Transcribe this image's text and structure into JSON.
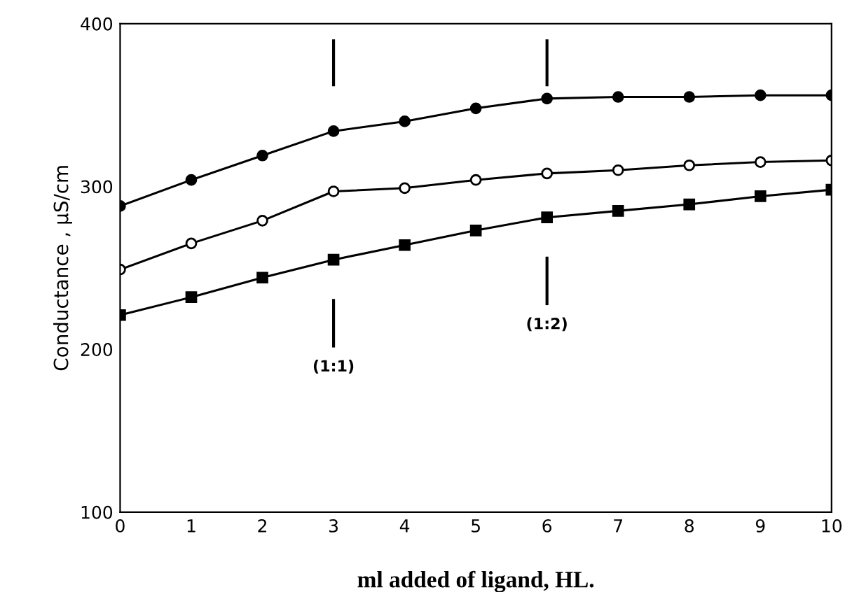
{
  "chart_data": {
    "type": "line",
    "xlabel": "ml added of ligand, HL.",
    "ylabel": "Conductance , μS/cm",
    "x": [
      0,
      1,
      2,
      3,
      4,
      5,
      6,
      7,
      8,
      9,
      10
    ],
    "series": [
      {
        "color": "#000000",
        "marker": "circle",
        "values": [
          288,
          304,
          319,
          334,
          340,
          348,
          354,
          355,
          355,
          356,
          356
        ]
      },
      {
        "color": "#000000",
        "marker": "open circle",
        "values": [
          249,
          265,
          279,
          297,
          299,
          304,
          308,
          310,
          313,
          315,
          316
        ]
      },
      {
        "color": "#000000",
        "marker": "square",
        "values": [
          221,
          232,
          244,
          255,
          264,
          273,
          281,
          285,
          289,
          294,
          298
        ]
      }
    ],
    "ref_lines": [
      {
        "axis": "x",
        "value": 3
      },
      {
        "axis": "x",
        "value": 6
      }
    ],
    "annotations": [
      "(1:1)",
      "(1:2)"
    ],
    "xlim": [
      0,
      10
    ],
    "xticks": [
      0,
      1,
      2,
      3,
      4,
      5,
      6,
      7,
      8,
      9,
      10
    ],
    "ylim": [
      100,
      400
    ],
    "yticks": [
      100,
      200,
      300,
      400
    ],
    "grid": false,
    "legend": false,
    "line_style": "solid"
  }
}
